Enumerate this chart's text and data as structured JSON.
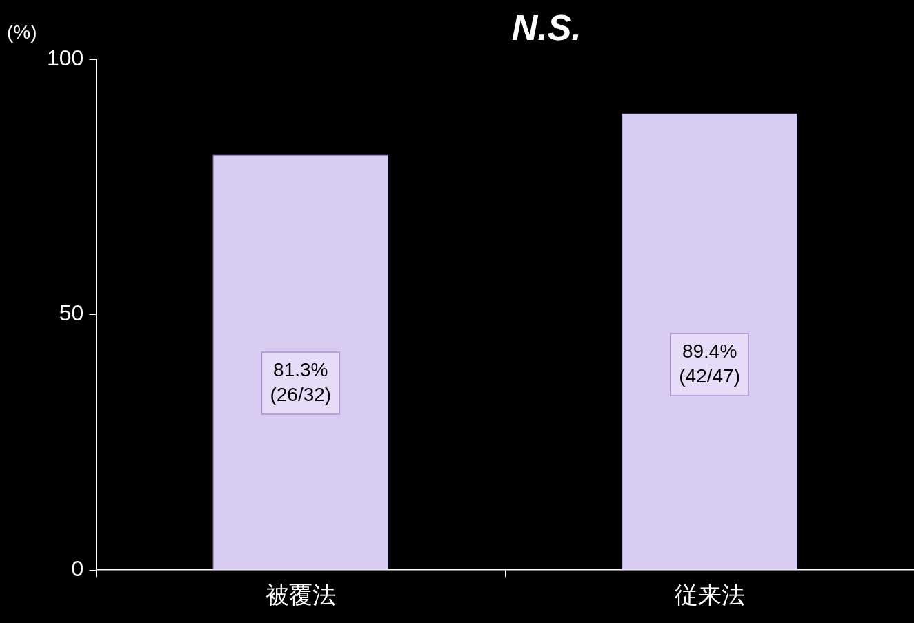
{
  "chart_data": {
    "type": "bar",
    "categories": [
      "被覆法",
      "従来法"
    ],
    "values": [
      81.3,
      89.4
    ],
    "color": "#d9ccf2",
    "value_labels": [
      "81.3%\n(26/32)",
      "89.4%\n(42/47)"
    ],
    "ylabel": "(%)",
    "annotations": [
      "N.S."
    ],
    "ylim": [
      0,
      100
    ],
    "yticks": [
      0,
      50,
      100
    ],
    "grid": false,
    "legend": false
  }
}
